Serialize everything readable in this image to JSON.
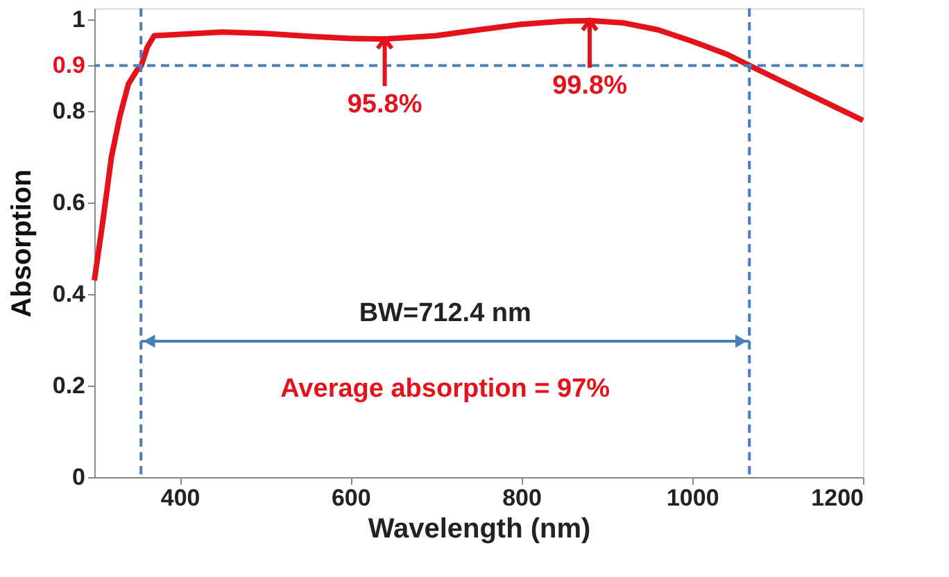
{
  "chart_data": {
    "type": "line",
    "xlabel": "Wavelength (nm)",
    "ylabel": "Absorption",
    "xlim": [
      300,
      1200
    ],
    "xticks": [
      400,
      600,
      800,
      1000,
      1200
    ],
    "ylim": [
      0,
      1.025
    ],
    "yticks": [
      0,
      0.2,
      0.4,
      0.6,
      0.8,
      0.9,
      1
    ],
    "grid": false,
    "line_style": "solid",
    "marker": "none",
    "series": [
      {
        "color": "#e3121b",
        "x": [
          300,
          310,
          320,
          330,
          340,
          350,
          355,
          362,
          370,
          400,
          450,
          500,
          550,
          600,
          640,
          700,
          750,
          800,
          850,
          880,
          920,
          960,
          1000,
          1040,
          1067,
          1100,
          1150,
          1200
        ],
        "values": [
          0.43,
          0.56,
          0.7,
          0.79,
          0.86,
          0.89,
          0.9,
          0.94,
          0.965,
          0.968,
          0.973,
          0.97,
          0.964,
          0.959,
          0.958,
          0.965,
          0.978,
          0.99,
          0.997,
          0.998,
          0.993,
          0.978,
          0.953,
          0.925,
          0.9,
          0.87,
          0.825,
          0.78
        ]
      }
    ],
    "ref_lines": [
      {
        "axis": "y",
        "value": 0.9,
        "color": "#4a7ebb",
        "line_style": "dashed"
      },
      {
        "axis": "x",
        "value": 354.6,
        "color": "#4a7ebb",
        "line_style": "dashed"
      },
      {
        "axis": "x",
        "value": 1067,
        "color": "#4a7ebb",
        "line_style": "dashed"
      }
    ],
    "annotations": [
      {
        "text": "95.8%",
        "x": 640,
        "y": 0.958
      },
      {
        "text": "99.8%",
        "x": 880,
        "y": 0.998
      },
      "BW=712.4 nm",
      "Average absorption = 97%"
    ]
  }
}
